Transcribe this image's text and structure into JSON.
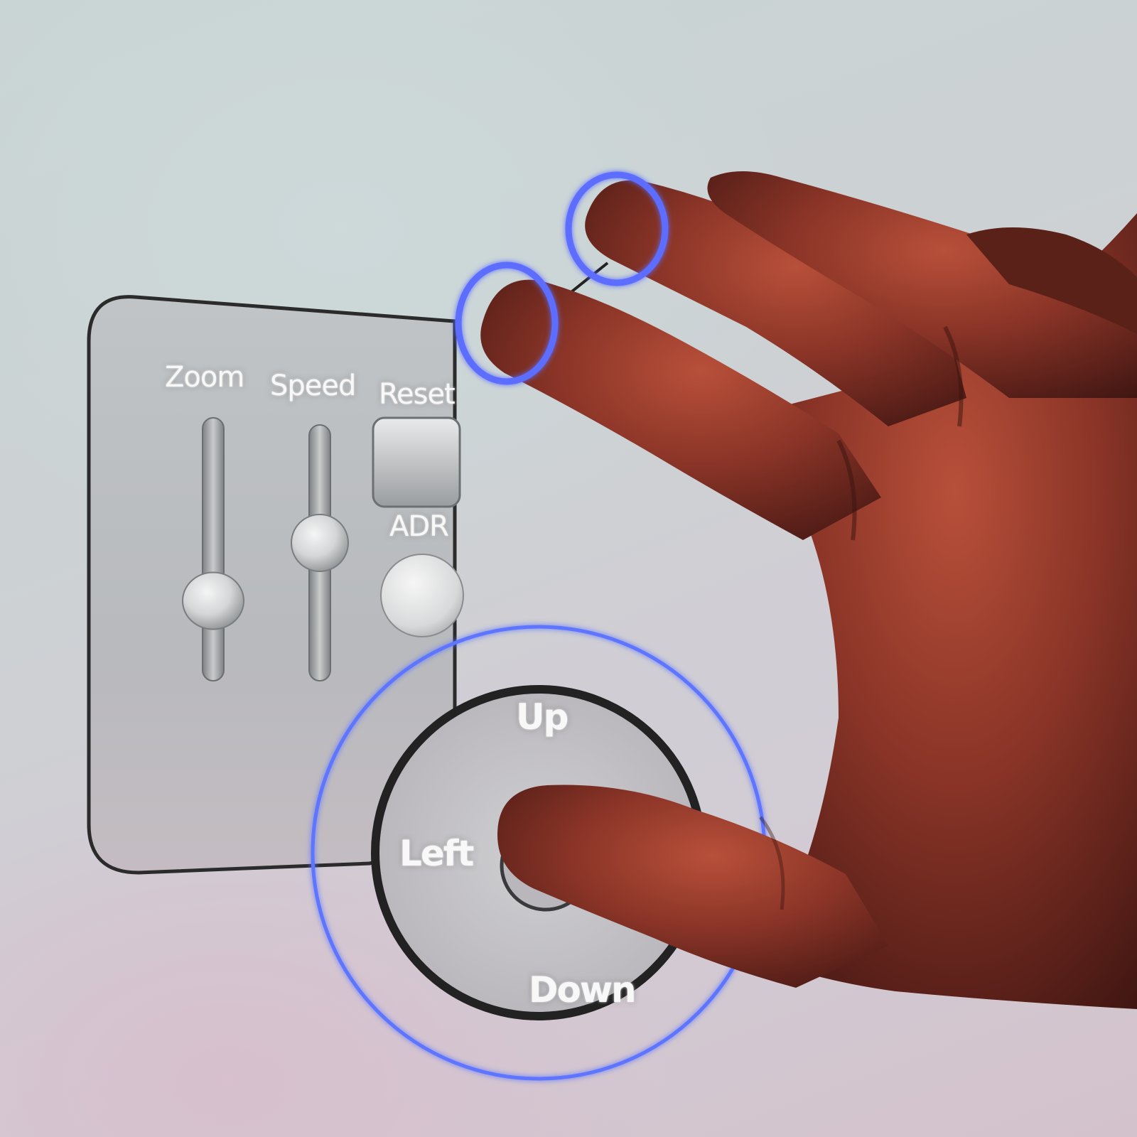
{
  "panel": {
    "zoom_label": "Zoom",
    "speed_label": "Speed",
    "reset_label": "Reset",
    "adr_label": "ADR"
  },
  "zoom_slider": {
    "level": 0.25
  },
  "speed_slider": {
    "level": 0.55
  },
  "dpad": {
    "up_label": "Up",
    "down_label": "Down",
    "left_label": "Left"
  },
  "colors": {
    "panel_fill": "#b9bcbf",
    "panel_border": "#2b2b2b",
    "touch_glow": "#4f6cff",
    "hand": "#7a2f24"
  },
  "icons": {
    "touch_point": "glow-ring",
    "hand": "hand-silhouette"
  }
}
